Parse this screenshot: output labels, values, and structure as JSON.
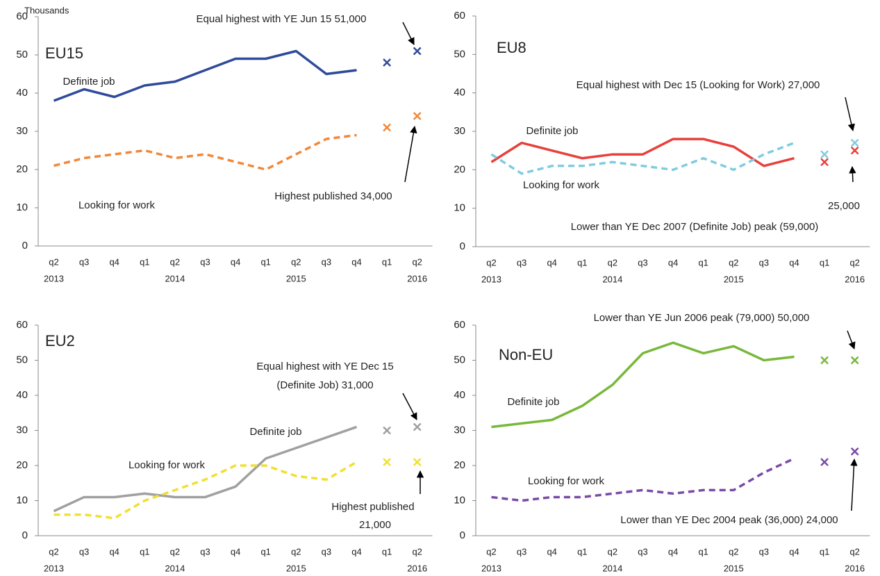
{
  "chart_data": [
    {
      "type": "line",
      "title": "EU15",
      "unit": "Thousands",
      "categories": [
        "q2",
        "q3",
        "q4",
        "q1",
        "q2",
        "q3",
        "q4",
        "q1",
        "q2",
        "q3",
        "q4",
        "q1",
        "q2"
      ],
      "years": [
        "2013",
        null,
        null,
        null,
        "2014",
        null,
        null,
        null,
        "2015",
        null,
        null,
        null,
        "2016"
      ],
      "ylim": [
        0,
        60
      ],
      "yticks": [
        0,
        10,
        20,
        30,
        40,
        50,
        60
      ],
      "series": [
        {
          "name": "Definite job",
          "color": "#2e4a9a",
          "dashed": false,
          "values": [
            38,
            41,
            39,
            42,
            43,
            46,
            49,
            49,
            51,
            45,
            46,
            null,
            null
          ],
          "estimates": [
            null,
            null,
            null,
            null,
            null,
            null,
            null,
            null,
            null,
            null,
            null,
            48,
            51
          ]
        },
        {
          "name": "Looking for work",
          "color": "#f0883a",
          "dashed": true,
          "values": [
            21,
            23,
            24,
            25,
            23,
            24,
            22,
            20,
            24,
            28,
            29,
            null,
            null
          ],
          "estimates": [
            null,
            null,
            null,
            null,
            null,
            null,
            null,
            null,
            null,
            null,
            null,
            31,
            34
          ]
        }
      ],
      "annotations": [
        "Equal highest with YE Jun 15 51,000",
        "Highest published  34,000"
      ]
    },
    {
      "type": "line",
      "title": "EU8",
      "categories": [
        "q2",
        "q3",
        "q4",
        "q1",
        "q2",
        "q3",
        "q4",
        "q1",
        "q2",
        "q3",
        "q4",
        "q1",
        "q2"
      ],
      "years": [
        "2013",
        null,
        null,
        null,
        "2014",
        null,
        null,
        null,
        "2015",
        null,
        null,
        null,
        "2016"
      ],
      "ylim": [
        0,
        60
      ],
      "yticks": [
        0,
        10,
        20,
        30,
        40,
        50,
        60
      ],
      "series": [
        {
          "name": "Definite job",
          "color": "#e8403a",
          "dashed": false,
          "values": [
            22,
            27,
            25,
            23,
            24,
            24,
            28,
            28,
            26,
            21,
            23,
            null,
            null
          ],
          "estimates": [
            null,
            null,
            null,
            null,
            null,
            null,
            null,
            null,
            null,
            null,
            null,
            22,
            25
          ]
        },
        {
          "name": "Looking for work",
          "color": "#7fcce0",
          "dashed": true,
          "values": [
            24,
            19,
            21,
            21,
            22,
            21,
            20,
            23,
            20,
            24,
            27,
            null,
            null
          ],
          "estimates": [
            null,
            null,
            null,
            null,
            null,
            null,
            null,
            null,
            null,
            null,
            null,
            24,
            27
          ]
        }
      ],
      "annotations": [
        "Equal highest with  Dec 15 (Looking  for Work)  27,000",
        "25,000",
        "Lower than YE Dec 2007 (Definite Job) peak (59,000)"
      ]
    },
    {
      "type": "line",
      "title": "EU2",
      "categories": [
        "q2",
        "q3",
        "q4",
        "q1",
        "q2",
        "q3",
        "q4",
        "q1",
        "q2",
        "q3",
        "q4",
        "q1",
        "q2"
      ],
      "years": [
        "2013",
        null,
        null,
        null,
        "2014",
        null,
        null,
        null,
        "2015",
        null,
        null,
        null,
        "2016"
      ],
      "ylim": [
        0,
        60
      ],
      "yticks": [
        0,
        10,
        20,
        30,
        40,
        50,
        60
      ],
      "series": [
        {
          "name": "Definite job",
          "color": "#a0a0a0",
          "dashed": false,
          "values": [
            7,
            11,
            11,
            12,
            11,
            11,
            14,
            22,
            25,
            28,
            31,
            null,
            null
          ],
          "estimates": [
            null,
            null,
            null,
            null,
            null,
            null,
            null,
            null,
            null,
            null,
            null,
            30,
            31
          ]
        },
        {
          "name": "Looking for work",
          "color": "#f0e030",
          "dashed": true,
          "values": [
            6,
            6,
            5,
            10,
            13,
            16,
            20,
            20,
            17,
            16,
            21,
            null,
            null
          ],
          "estimates": [
            null,
            null,
            null,
            null,
            null,
            null,
            null,
            null,
            null,
            null,
            null,
            21,
            21
          ]
        }
      ],
      "annotations": [
        "Equal highest with  YE Dec 15",
        "(Definite Job) 31,000",
        "Highest published",
        "21,000"
      ]
    },
    {
      "type": "line",
      "title": "Non-EU",
      "categories": [
        "q2",
        "q3",
        "q4",
        "q1",
        "q2",
        "q3",
        "q4",
        "q1",
        "q2",
        "q3",
        "q4",
        "q1",
        "q2"
      ],
      "years": [
        "2013",
        null,
        null,
        null,
        "2014",
        null,
        null,
        null,
        "2015",
        null,
        null,
        null,
        "2016"
      ],
      "ylim": [
        0,
        60
      ],
      "yticks": [
        0,
        10,
        20,
        30,
        40,
        50,
        60
      ],
      "series": [
        {
          "name": "Definite job",
          "color": "#78b83a",
          "dashed": false,
          "values": [
            31,
            32,
            33,
            37,
            43,
            52,
            55,
            52,
            54,
            50,
            51,
            null,
            null
          ],
          "estimates": [
            null,
            null,
            null,
            null,
            null,
            null,
            null,
            null,
            null,
            null,
            null,
            50,
            50
          ]
        },
        {
          "name": "Looking for work",
          "color": "#7a4aa8",
          "dashed": true,
          "values": [
            11,
            10,
            11,
            11,
            12,
            13,
            12,
            13,
            13,
            18,
            22,
            null,
            null
          ],
          "estimates": [
            null,
            null,
            null,
            null,
            null,
            null,
            null,
            null,
            null,
            null,
            null,
            21,
            24
          ]
        }
      ],
      "annotations": [
        "Lower than YE Jun 2006 peak (79,000)  50,000",
        "Lower than YE Dec 2004 peak (36,000)  24,000"
      ]
    }
  ]
}
